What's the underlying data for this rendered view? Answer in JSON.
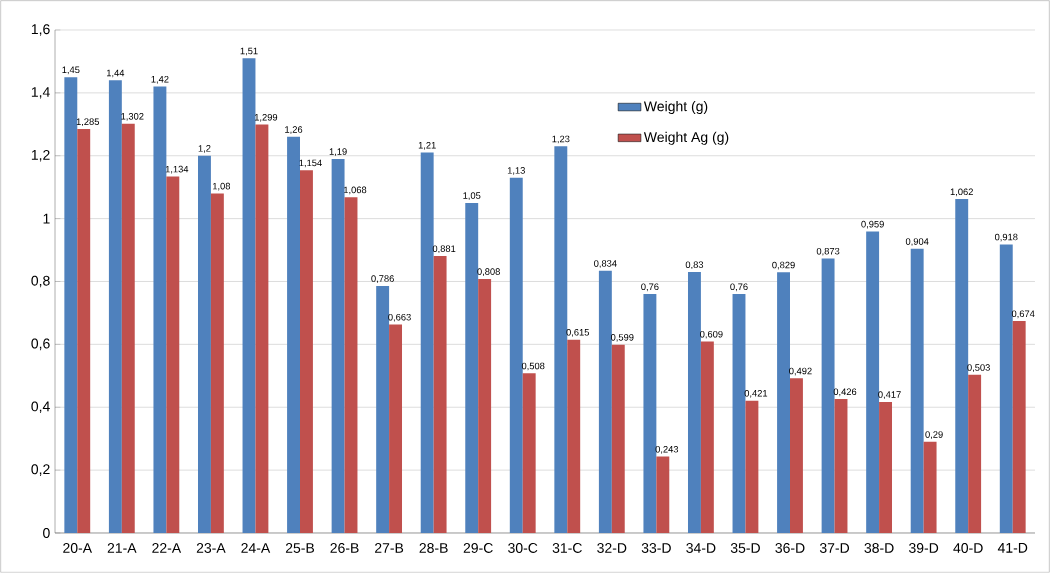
{
  "chart_data": {
    "type": "bar",
    "categories": [
      "20-A",
      "21-A",
      "22-A",
      "23-A",
      "24-A",
      "25-B",
      "26-B",
      "27-B",
      "28-B",
      "29-C",
      "30-C",
      "31-C",
      "32-D",
      "33-D",
      "34-D",
      "35-D",
      "36-D",
      "37-D",
      "38-D",
      "39-D",
      "40-D",
      "41-D"
    ],
    "series": [
      {
        "name": "Weight (g)",
        "color": "#4f81bd",
        "values": [
          1.45,
          1.44,
          1.42,
          1.2,
          1.51,
          1.26,
          1.19,
          0.786,
          1.21,
          1.05,
          1.13,
          1.23,
          0.834,
          0.76,
          0.83,
          0.76,
          0.829,
          0.873,
          0.959,
          0.904,
          1.062,
          0.918
        ],
        "value_labels": [
          "1,45",
          "1,44",
          "1,42",
          "1,2",
          "1,51",
          "1,26",
          "1,19",
          "0,786",
          "1,21",
          "1,05",
          "1,13",
          "1,23",
          "0,834",
          "0,76",
          "0,83",
          "0,76",
          "0,829",
          "0,873",
          "0,959",
          "0,904",
          "1,062",
          "0,918"
        ]
      },
      {
        "name": "Weight Ag (g)",
        "color": "#c0504d",
        "values": [
          1.285,
          1.302,
          1.134,
          1.08,
          1.299,
          1.154,
          1.068,
          0.663,
          0.881,
          0.808,
          0.508,
          0.615,
          0.599,
          0.243,
          0.609,
          0.421,
          0.492,
          0.426,
          0.417,
          0.29,
          0.503,
          0.674
        ],
        "value_labels": [
          "1,285",
          "1,302",
          "1,134",
          "1,08",
          "1,299",
          "1,154",
          "1,068",
          "0,663",
          "0,881",
          "0,808",
          "0,508",
          "0,615",
          "0,599",
          "0,243",
          "0,609",
          "0,421",
          "0,492",
          "0,426",
          "0,417",
          "0,29",
          "0,503",
          "0,674"
        ]
      }
    ],
    "ylim": [
      0,
      1.6
    ],
    "yticks": [
      0,
      {
        "value": 0.2,
        "label": "0,2"
      },
      {
        "value": 0.4,
        "label": "0,4"
      },
      {
        "value": 0.6,
        "label": "0,6"
      },
      {
        "value": 0.8,
        "label": "0,8"
      },
      1,
      {
        "value": 1.2,
        "label": "1,2"
      },
      {
        "value": 1.4,
        "label": "1,4"
      },
      {
        "value": 1.6,
        "label": "1,6"
      }
    ],
    "grid": "y",
    "legend": "top right"
  }
}
